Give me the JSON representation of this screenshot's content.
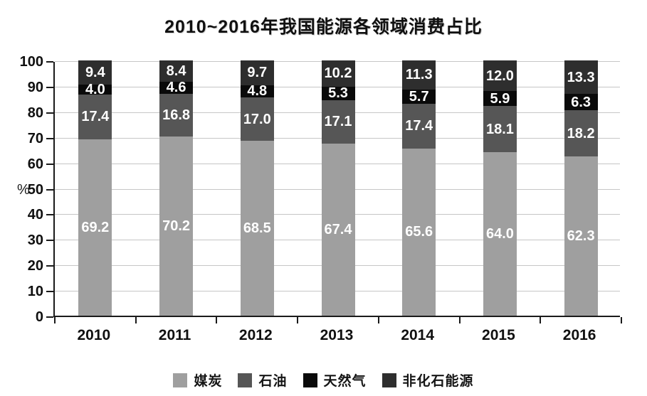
{
  "chart_data": {
    "type": "bar",
    "subtype": "stacked",
    "title": "2010~2016年我国能源各领域消费占比",
    "ylabel": "%",
    "xlabel": "",
    "ylim": [
      0,
      100
    ],
    "yticks": [
      "0",
      "10",
      "20",
      "30",
      "40",
      "50",
      "60",
      "70",
      "80",
      "90",
      "100"
    ],
    "grid": true,
    "legend_position": "bottom",
    "categories": [
      "2010",
      "2011",
      "2012",
      "2013",
      "2014",
      "2015",
      "2016"
    ],
    "series": [
      {
        "name": "媒炭",
        "color": "#9f9f9f",
        "values": [
          69.2,
          70.2,
          68.5,
          67.4,
          65.6,
          64.0,
          62.3
        ],
        "labels": [
          "69.2",
          "70.2",
          "68.5",
          "67.4",
          "65.6",
          "64.0",
          "62.3"
        ]
      },
      {
        "name": "石油",
        "color": "#565656",
        "values": [
          17.4,
          16.8,
          17.0,
          17.1,
          17.4,
          18.1,
          18.2
        ],
        "labels": [
          "17.4",
          "16.8",
          "17.0",
          "17.1",
          "17.4",
          "18.1",
          "18.2"
        ]
      },
      {
        "name": "天然气",
        "color": "#0a0a0a",
        "values": [
          4.0,
          4.6,
          4.8,
          5.3,
          5.7,
          5.9,
          6.3
        ],
        "labels": [
          "4.0",
          "4.6",
          "4.8",
          "5.3",
          "5.7",
          "5.9",
          "6.3"
        ]
      },
      {
        "name": "非化石能源",
        "color": "#2e2e2e",
        "values": [
          9.4,
          8.4,
          9.7,
          10.2,
          11.3,
          12.0,
          13.3
        ],
        "labels": [
          "9.4",
          "8.4",
          "9.7",
          "10.2",
          "11.3",
          "12.0",
          "13.3"
        ]
      }
    ],
    "colors": {
      "axis": "#1a1a1a",
      "gridline": "#c6c6c6",
      "value_label_text": "#ffffff",
      "background": "#ffffff"
    }
  }
}
